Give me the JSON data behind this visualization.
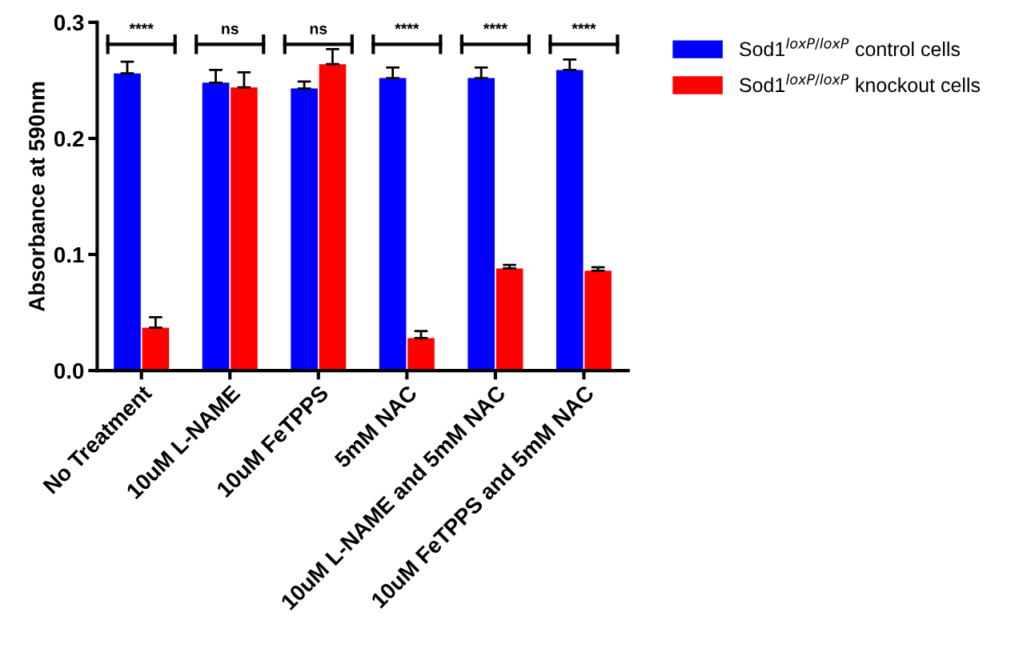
{
  "chart_data": {
    "type": "bar",
    "ylabel": "Absorbance at 590nm",
    "categories": [
      "No Treatment",
      "10uM L-NAME",
      "10uM FeTPPS",
      "5mM NAC",
      "10uM L-NAME and 5mM NAC",
      "10uM FeTPPS and 5mM NAC"
    ],
    "series": [
      {
        "name": "Sod1$^{loxP/loxP}$ control cells",
        "color": "#0000ff",
        "values": [
          0.256,
          0.248,
          0.243,
          0.252,
          0.252,
          0.259
        ],
        "errors": [
          [
            0.256,
            0.266
          ],
          [
            0.248,
            0.259
          ],
          [
            0.243,
            0.249
          ],
          [
            0.252,
            0.261
          ],
          [
            0.252,
            0.261
          ],
          [
            0.259,
            0.268
          ]
        ]
      },
      {
        "name": "Sod1$^{loxP/loxP}$ knockout cells",
        "color": "#ff0000",
        "values": [
          0.037,
          0.244,
          0.264,
          0.028,
          0.088,
          0.086
        ],
        "errors": [
          [
            0.037,
            0.046
          ],
          [
            0.244,
            0.257
          ],
          [
            0.264,
            0.277
          ],
          [
            0.028,
            0.034
          ],
          [
            0.088,
            0.091
          ],
          [
            0.086,
            0.089
          ]
        ]
      }
    ],
    "ylim": [
      0,
      0.3
    ],
    "yticks": [
      {
        "value": 0,
        "label": "0.0"
      },
      {
        "value": 0.1,
        "label": "0.1"
      },
      {
        "value": 0.2,
        "label": "0.2"
      },
      {
        "value": 0.3,
        "label": "0.3"
      }
    ],
    "annotations": [
      "****",
      "ns",
      "ns",
      "****",
      "****",
      "****"
    ],
    "grid": false,
    "legend": "top right"
  }
}
